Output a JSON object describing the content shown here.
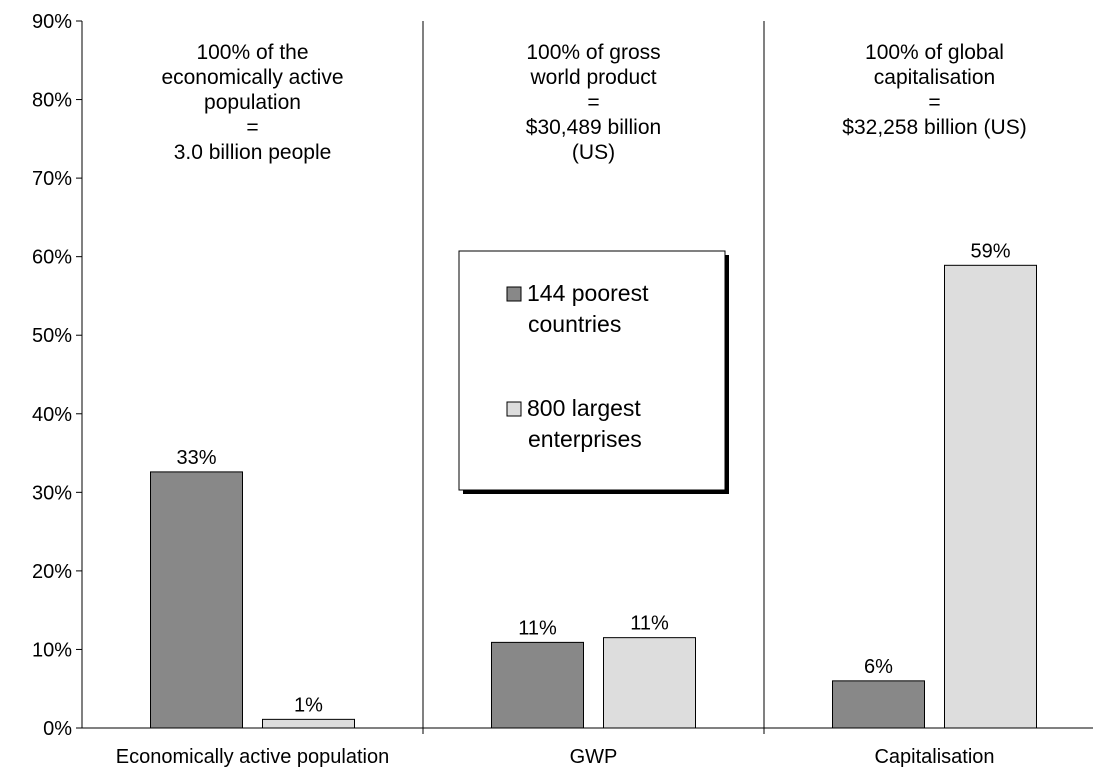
{
  "chart_data": {
    "type": "bar",
    "categories": [
      "Economically active population",
      "GWP",
      "Capitalisation"
    ],
    "series": [
      {
        "name": "144 poorest countries",
        "values": [
          32.6,
          10.9,
          6.0
        ],
        "labels": [
          "33%",
          "11%",
          "6%"
        ],
        "color": "#888888"
      },
      {
        "name": "800 largest enterprises",
        "values": [
          1.1,
          11.5,
          58.9
        ],
        "labels": [
          "1%",
          "11%",
          "59%"
        ],
        "color": "#dddddd"
      }
    ],
    "legend_labels": [
      [
        "144 poorest",
        "countries"
      ],
      [
        "800 largest",
        "enterprises"
      ]
    ],
    "ylim": [
      0,
      90
    ],
    "yticks": [
      0,
      10,
      20,
      30,
      40,
      50,
      60,
      70,
      80,
      90
    ],
    "ytick_labels": [
      "0%",
      "10%",
      "20%",
      "30%",
      "40%",
      "50%",
      "60%",
      "70%",
      "80%",
      "90%"
    ],
    "annotations": [
      [
        "100% of the",
        "economically active",
        "population",
        "=",
        "3.0 billion people"
      ],
      [
        "100% of gross",
        "world product",
        "=",
        "$30,489 billion",
        "(US)"
      ],
      [
        "100% of global",
        "capitalisation",
        "=",
        "$32,258 billion (US)"
      ]
    ],
    "legend_position": "center",
    "grid": false
  }
}
